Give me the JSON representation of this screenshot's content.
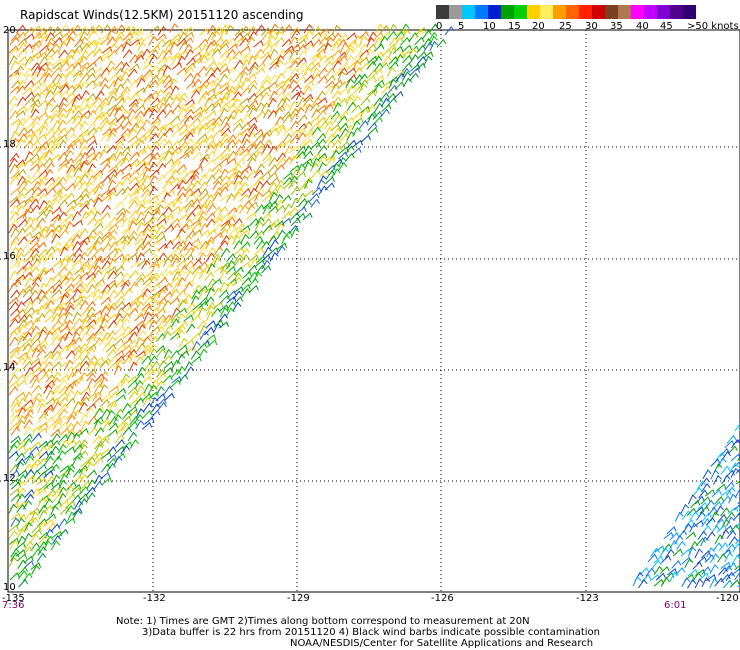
{
  "title": "Rapidscat Winds(12.5KM) 20151120 ascending",
  "colorbar": {
    "colors": [
      "#3c3c3c",
      "#9a9a9a",
      "#00c8ff",
      "#0078ff",
      "#0020d0",
      "#00a000",
      "#00d000",
      "#ffd000",
      "#ffee60",
      "#ffa000",
      "#ff6400",
      "#ff2000",
      "#d00000",
      "#7a4020",
      "#b07850",
      "#ff00ff",
      "#c000ff",
      "#8000d0",
      "#50008c",
      "#300070"
    ],
    "labels": [
      {
        "text": "0",
        "x": 436
      },
      {
        "text": "5",
        "x": 458
      },
      {
        "text": "10",
        "x": 483
      },
      {
        "text": "15",
        "x": 508
      },
      {
        "text": "20",
        "x": 532
      },
      {
        "text": "25",
        "x": 559
      },
      {
        "text": "30",
        "x": 585
      },
      {
        "text": "35",
        "x": 610
      },
      {
        "text": "40",
        "x": 636
      },
      {
        "text": "45",
        "x": 660
      },
      {
        "text": ">50 knots",
        "x": 687
      }
    ]
  },
  "lat_labels": [
    "20",
    "18",
    "16",
    "14",
    "12",
    "10"
  ],
  "lon_labels": [
    "-135",
    "-132",
    "-129",
    "-126",
    "-123",
    "-120"
  ],
  "time_labels": {
    "left": "7:36",
    "right": "6:01"
  },
  "notes": {
    "line1": "Note: 1) Times are GMT 2)Times along bottom correspond to measurement at 20N",
    "line2": "3)Data buffer is 22 hrs from 20151120 4) Black wind barbs indicate possible contamination",
    "line3": "NOAA/NESDIS/Center for Satellite Applications and Research"
  }
}
